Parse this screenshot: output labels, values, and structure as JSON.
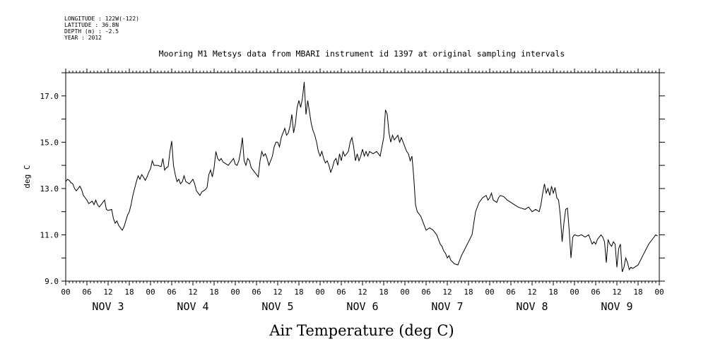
{
  "header": {
    "longitude": "LONGITUDE : 122W(-122)",
    "latitude": "LATITUDE : 36.8N",
    "depth": "DEPTH (m) : -2.5",
    "year": "YEAR : 2012",
    "title": "Mooring M1 Metsys data from MBARI instrument id 1397 at original sampling intervals"
  },
  "chart_data": {
    "type": "line",
    "title": "Mooring M1 Metsys data from MBARI instrument id 1397 at original sampling intervals",
    "xlabel": "Air Temperature (deg C)",
    "ylabel": "deg C",
    "xlim_hours": [
      0,
      168
    ],
    "ylim": [
      9.0,
      18.0
    ],
    "y_ticks": [
      "9.0",
      "11.0",
      "13.0",
      "15.0",
      "17.0"
    ],
    "x_hour_labels": [
      "00",
      "06",
      "12",
      "18",
      "00",
      "06",
      "12",
      "18",
      "00",
      "06",
      "12",
      "18",
      "00",
      "06",
      "12",
      "18",
      "00",
      "06",
      "12",
      "18",
      "00",
      "06",
      "12",
      "18",
      "00",
      "06",
      "12",
      "18",
      "00"
    ],
    "x_day_labels": [
      "NOV  3",
      "NOV  4",
      "NOV  5",
      "NOV  6",
      "NOV  7",
      "NOV  8",
      "NOV  9"
    ],
    "series": [
      {
        "points": [
          [
            0,
            13.3
          ],
          [
            0.5,
            13.4
          ],
          [
            1,
            13.35
          ],
          [
            1.5,
            13.25
          ],
          [
            2,
            13.2
          ],
          [
            2.5,
            13.0
          ],
          [
            3,
            12.9
          ],
          [
            3.5,
            13.0
          ],
          [
            4,
            13.1
          ],
          [
            4.5,
            12.95
          ],
          [
            5,
            12.7
          ],
          [
            5.5,
            12.6
          ],
          [
            6,
            12.5
          ],
          [
            6.5,
            12.35
          ],
          [
            7,
            12.4
          ],
          [
            7.5,
            12.45
          ],
          [
            8,
            12.3
          ],
          [
            8.5,
            12.5
          ],
          [
            9,
            12.3
          ],
          [
            9.5,
            12.2
          ],
          [
            10,
            12.3
          ],
          [
            11,
            12.5
          ],
          [
            11.5,
            12.1
          ],
          [
            12,
            12.05
          ],
          [
            13,
            12.1
          ],
          [
            13.5,
            11.7
          ],
          [
            14,
            11.5
          ],
          [
            14.5,
            11.6
          ],
          [
            15,
            11.4
          ],
          [
            16,
            11.2
          ],
          [
            16.5,
            11.35
          ],
          [
            17,
            11.6
          ],
          [
            17.5,
            11.85
          ],
          [
            18,
            12.0
          ],
          [
            18.5,
            12.3
          ],
          [
            19,
            12.7
          ],
          [
            19.5,
            13.0
          ],
          [
            20,
            13.3
          ],
          [
            20.5,
            13.55
          ],
          [
            21,
            13.4
          ],
          [
            21.5,
            13.6
          ],
          [
            22,
            13.5
          ],
          [
            22.5,
            13.35
          ],
          [
            23,
            13.5
          ],
          [
            23.5,
            13.7
          ],
          [
            24,
            13.85
          ],
          [
            24.5,
            14.2
          ],
          [
            25,
            14.0
          ],
          [
            26,
            14.0
          ],
          [
            27,
            13.95
          ],
          [
            27.5,
            14.3
          ],
          [
            28,
            13.8
          ],
          [
            28.5,
            13.9
          ],
          [
            29,
            13.95
          ],
          [
            29.5,
            14.6
          ],
          [
            30,
            15.05
          ],
          [
            30.5,
            14.0
          ],
          [
            31,
            13.6
          ],
          [
            31.5,
            13.3
          ],
          [
            32,
            13.4
          ],
          [
            32.5,
            13.2
          ],
          [
            33,
            13.3
          ],
          [
            33.5,
            13.55
          ],
          [
            34,
            13.3
          ],
          [
            35,
            13.2
          ],
          [
            36,
            13.4
          ],
          [
            36.5,
            13.2
          ],
          [
            37,
            12.9
          ],
          [
            37.5,
            12.8
          ],
          [
            38,
            12.7
          ],
          [
            38.5,
            12.85
          ],
          [
            39,
            12.9
          ],
          [
            39.5,
            12.95
          ],
          [
            40,
            13.05
          ],
          [
            40.5,
            13.6
          ],
          [
            41,
            13.8
          ],
          [
            41.5,
            13.5
          ],
          [
            42,
            13.9
          ],
          [
            42.5,
            14.6
          ],
          [
            43,
            14.3
          ],
          [
            43.5,
            14.2
          ],
          [
            44,
            14.3
          ],
          [
            44.5,
            14.15
          ],
          [
            45,
            14.1
          ],
          [
            46,
            14.0
          ],
          [
            47,
            14.2
          ],
          [
            47.5,
            14.3
          ],
          [
            48,
            14.05
          ],
          [
            48.5,
            14.0
          ],
          [
            49,
            14.2
          ],
          [
            49.5,
            14.6
          ],
          [
            50,
            15.2
          ],
          [
            50.5,
            14.2
          ],
          [
            51,
            14.0
          ],
          [
            51.5,
            14.3
          ],
          [
            52,
            14.2
          ],
          [
            52.5,
            13.9
          ],
          [
            53,
            13.8
          ],
          [
            54,
            13.6
          ],
          [
            54.5,
            13.5
          ],
          [
            55,
            14.2
          ],
          [
            55.5,
            14.6
          ],
          [
            56,
            14.4
          ],
          [
            56.5,
            14.5
          ],
          [
            57,
            14.3
          ],
          [
            57.5,
            14.0
          ],
          [
            58,
            14.2
          ],
          [
            58.5,
            14.4
          ],
          [
            59,
            14.8
          ],
          [
            59.5,
            15.0
          ],
          [
            60,
            15.0
          ],
          [
            60.5,
            14.8
          ],
          [
            61,
            15.2
          ],
          [
            61.5,
            15.4
          ],
          [
            62,
            15.6
          ],
          [
            62.5,
            15.3
          ],
          [
            63,
            15.4
          ],
          [
            63.5,
            15.7
          ],
          [
            64,
            16.2
          ],
          [
            64.5,
            15.4
          ],
          [
            65,
            15.8
          ],
          [
            65.5,
            16.5
          ],
          [
            66,
            16.8
          ],
          [
            66.5,
            16.5
          ],
          [
            67,
            16.9
          ],
          [
            67.5,
            17.6
          ],
          [
            68,
            16.2
          ],
          [
            68.5,
            16.8
          ],
          [
            69,
            16.3
          ],
          [
            69.5,
            15.8
          ],
          [
            70,
            15.5
          ],
          [
            70.5,
            15.3
          ],
          [
            71,
            15.0
          ],
          [
            71.5,
            14.6
          ],
          [
            72,
            14.4
          ],
          [
            72.5,
            14.6
          ],
          [
            73,
            14.3
          ],
          [
            73.5,
            14.1
          ],
          [
            74,
            14.2
          ],
          [
            74.5,
            14.0
          ],
          [
            75,
            13.7
          ],
          [
            75.5,
            13.9
          ],
          [
            76,
            14.2
          ],
          [
            76.5,
            14.3
          ],
          [
            77,
            14.0
          ],
          [
            77.5,
            14.5
          ],
          [
            78,
            14.2
          ],
          [
            78.5,
            14.6
          ],
          [
            79,
            14.4
          ],
          [
            79.5,
            14.5
          ],
          [
            80,
            14.6
          ],
          [
            80.5,
            15.0
          ],
          [
            81,
            15.2
          ],
          [
            81.5,
            14.8
          ],
          [
            82,
            14.2
          ],
          [
            82.5,
            14.5
          ],
          [
            83,
            14.2
          ],
          [
            83.5,
            14.4
          ],
          [
            84,
            14.7
          ],
          [
            84.5,
            14.4
          ],
          [
            85,
            14.6
          ],
          [
            85.5,
            14.4
          ],
          [
            86,
            14.6
          ],
          [
            87,
            14.5
          ],
          [
            88,
            14.6
          ],
          [
            89,
            14.4
          ],
          [
            89.5,
            14.8
          ],
          [
            90,
            15.2
          ],
          [
            90.5,
            16.4
          ],
          [
            91,
            16.2
          ],
          [
            91.5,
            15.4
          ],
          [
            92,
            15.0
          ],
          [
            92.5,
            15.3
          ],
          [
            93,
            15.1
          ],
          [
            93.5,
            15.2
          ],
          [
            94,
            15.3
          ],
          [
            94.5,
            15.0
          ],
          [
            95,
            15.2
          ],
          [
            95.5,
            15.0
          ],
          [
            96,
            14.8
          ],
          [
            96.5,
            14.6
          ],
          [
            97,
            14.5
          ],
          [
            97.5,
            14.2
          ],
          [
            98,
            14.4
          ],
          [
            98.5,
            13.5
          ],
          [
            99,
            12.3
          ],
          [
            99.5,
            12.0
          ],
          [
            100,
            11.9
          ],
          [
            100.5,
            11.8
          ],
          [
            101,
            11.6
          ],
          [
            101.5,
            11.4
          ],
          [
            102,
            11.2
          ],
          [
            103,
            11.3
          ],
          [
            104,
            11.2
          ],
          [
            105,
            11.0
          ],
          [
            105.5,
            10.8
          ],
          [
            106,
            10.6
          ],
          [
            106.5,
            10.5
          ],
          [
            107,
            10.3
          ],
          [
            107.5,
            10.2
          ],
          [
            108,
            10.0
          ],
          [
            108.5,
            10.1
          ],
          [
            109,
            9.9
          ],
          [
            110,
            9.75
          ],
          [
            111,
            9.7
          ],
          [
            111.5,
            9.9
          ],
          [
            112,
            10.1
          ],
          [
            113,
            10.4
          ],
          [
            114,
            10.7
          ],
          [
            115,
            11.0
          ],
          [
            115.5,
            11.5
          ],
          [
            116,
            12.0
          ],
          [
            117,
            12.4
          ],
          [
            118,
            12.6
          ],
          [
            119,
            12.7
          ],
          [
            119.5,
            12.5
          ],
          [
            120,
            12.6
          ],
          [
            120.5,
            12.8
          ],
          [
            121,
            12.5
          ],
          [
            122,
            12.4
          ],
          [
            122.5,
            12.6
          ],
          [
            123,
            12.7
          ],
          [
            124,
            12.65
          ],
          [
            125,
            12.5
          ],
          [
            126,
            12.4
          ],
          [
            127,
            12.3
          ],
          [
            128,
            12.2
          ],
          [
            129,
            12.15
          ],
          [
            130,
            12.1
          ],
          [
            131,
            12.2
          ],
          [
            132,
            12.0
          ],
          [
            133,
            12.1
          ],
          [
            134,
            12.0
          ],
          [
            134.5,
            12.3
          ],
          [
            135,
            12.8
          ],
          [
            135.5,
            13.2
          ],
          [
            136,
            12.8
          ],
          [
            136.5,
            13.0
          ],
          [
            137,
            12.7
          ],
          [
            137.5,
            13.1
          ],
          [
            138,
            12.8
          ],
          [
            138.5,
            13.05
          ],
          [
            139,
            12.6
          ],
          [
            139.5,
            12.5
          ],
          [
            140,
            11.8
          ],
          [
            140.5,
            10.7
          ],
          [
            141,
            11.5
          ],
          [
            141.5,
            12.1
          ],
          [
            142,
            12.15
          ],
          [
            142.5,
            11.2
          ],
          [
            143,
            10.0
          ],
          [
            143.5,
            10.9
          ],
          [
            144,
            11.0
          ],
          [
            145,
            10.95
          ],
          [
            146,
            11.0
          ],
          [
            147,
            10.9
          ],
          [
            148,
            11.0
          ],
          [
            148.5,
            10.8
          ],
          [
            149,
            10.6
          ],
          [
            149.5,
            10.7
          ],
          [
            150,
            10.6
          ],
          [
            150.5,
            10.8
          ],
          [
            151,
            10.9
          ],
          [
            151.5,
            11.0
          ],
          [
            152,
            10.9
          ],
          [
            152.5,
            10.7
          ],
          [
            153,
            9.8
          ],
          [
            153.5,
            10.8
          ],
          [
            154,
            10.6
          ],
          [
            154.5,
            10.5
          ],
          [
            155,
            10.7
          ],
          [
            155.5,
            10.6
          ],
          [
            156,
            9.6
          ],
          [
            156.5,
            10.4
          ],
          [
            157,
            10.6
          ],
          [
            157.5,
            9.4
          ],
          [
            158,
            9.6
          ],
          [
            158.5,
            10.0
          ],
          [
            159,
            9.8
          ],
          [
            159.5,
            9.5
          ],
          [
            160,
            9.6
          ],
          [
            160.5,
            9.55
          ],
          [
            161,
            9.6
          ],
          [
            162,
            9.7
          ],
          [
            163,
            10.0
          ],
          [
            164,
            10.3
          ],
          [
            165,
            10.6
          ],
          [
            166,
            10.8
          ],
          [
            167,
            11.0
          ],
          [
            167.5,
            10.95
          ]
        ]
      }
    ]
  }
}
